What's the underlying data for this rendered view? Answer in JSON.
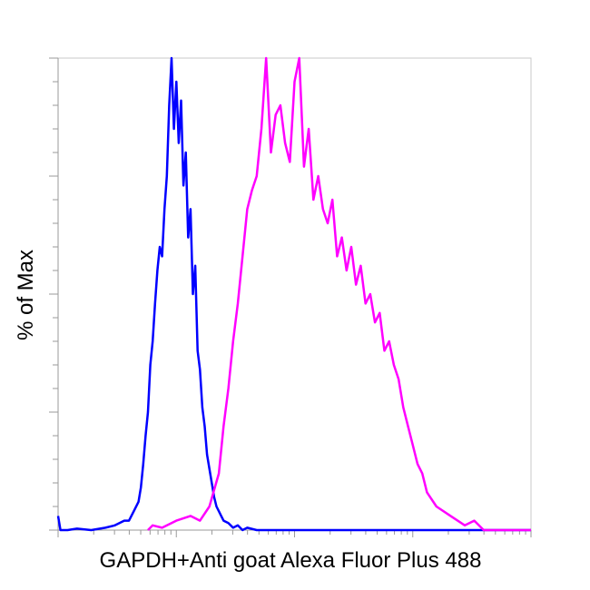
{
  "chart_data": {
    "type": "line",
    "title": "",
    "xlabel": "GAPDH+Anti goat Alexa Fluor Plus 488",
    "ylabel": "% of Max",
    "x_scale": "log",
    "xlim": [
      0,
      1
    ],
    "ylim": [
      0,
      100
    ],
    "grid": false,
    "legend": "none",
    "series": [
      {
        "color": "#0000ff",
        "x": [
          0.0,
          0.005,
          0.02,
          0.04,
          0.07,
          0.1,
          0.12,
          0.14,
          0.15,
          0.16,
          0.17,
          0.175,
          0.18,
          0.185,
          0.19,
          0.195,
          0.2,
          0.205,
          0.21,
          0.215,
          0.22,
          0.225,
          0.23,
          0.235,
          0.24,
          0.245,
          0.25,
          0.255,
          0.26,
          0.265,
          0.27,
          0.275,
          0.28,
          0.285,
          0.29,
          0.295,
          0.3,
          0.305,
          0.31,
          0.315,
          0.32,
          0.325,
          0.33,
          0.335,
          0.34,
          0.345,
          0.35,
          0.36,
          0.37,
          0.38,
          0.39,
          0.4,
          0.42,
          0.45,
          0.5,
          0.6,
          0.7,
          0.8,
          0.9,
          1.0
        ],
        "y": [
          3,
          0,
          0,
          0.3,
          0,
          0.5,
          1,
          2,
          2,
          4,
          6,
          9,
          14,
          20,
          25,
          35,
          40,
          48,
          55,
          60,
          58,
          68,
          75,
          90,
          100,
          85,
          95,
          82,
          91,
          73,
          80,
          62,
          68,
          50,
          56,
          38,
          34,
          26,
          22,
          16,
          13,
          10,
          7,
          5,
          4,
          3,
          2,
          1.5,
          0.5,
          1,
          0,
          0.5,
          0,
          0,
          0,
          0,
          0,
          0,
          0,
          0
        ]
      },
      {
        "color": "#ff00ff",
        "x": [
          0.19,
          0.2,
          0.22,
          0.25,
          0.28,
          0.3,
          0.32,
          0.34,
          0.35,
          0.36,
          0.37,
          0.38,
          0.39,
          0.4,
          0.41,
          0.42,
          0.43,
          0.44,
          0.45,
          0.46,
          0.47,
          0.48,
          0.49,
          0.5,
          0.51,
          0.52,
          0.53,
          0.54,
          0.55,
          0.56,
          0.57,
          0.58,
          0.59,
          0.6,
          0.61,
          0.62,
          0.63,
          0.64,
          0.65,
          0.66,
          0.67,
          0.68,
          0.69,
          0.7,
          0.71,
          0.72,
          0.73,
          0.74,
          0.75,
          0.76,
          0.77,
          0.78,
          0.8,
          0.83,
          0.86,
          0.88,
          0.9,
          0.95,
          1.0
        ],
        "y": [
          0,
          1,
          0.5,
          2,
          3,
          2,
          5,
          12,
          22,
          30,
          40,
          48,
          58,
          68,
          72,
          75,
          85,
          100,
          80,
          88,
          90,
          82,
          78,
          95,
          100,
          77,
          85,
          70,
          75,
          68,
          65,
          70,
          58,
          62,
          55,
          60,
          52,
          56,
          48,
          50,
          44,
          46,
          38,
          40,
          35,
          32,
          26,
          22,
          18,
          14,
          12,
          8,
          5,
          3,
          1,
          2,
          0,
          0,
          0
        ]
      }
    ]
  }
}
